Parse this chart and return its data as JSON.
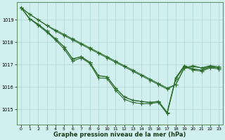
{
  "xlabel": "Graphe pression niveau de la mer (hPa)",
  "xlim": [
    -0.5,
    23.5
  ],
  "ylim": [
    1014.3,
    1019.8
  ],
  "yticks": [
    1015,
    1016,
    1017,
    1018,
    1019
  ],
  "xticks": [
    0,
    1,
    2,
    3,
    4,
    5,
    6,
    7,
    8,
    9,
    10,
    11,
    12,
    13,
    14,
    15,
    16,
    17,
    18,
    19,
    20,
    21,
    22,
    23
  ],
  "background_color": "#d0efee",
  "grid_color": "#aad4d0",
  "line_color": "#2d6e2d",
  "line1": [
    1019.55,
    1019.25,
    1019.0,
    1018.75,
    1018.55,
    1018.35,
    1018.15,
    1017.95,
    1017.75,
    1017.55,
    1017.35,
    1017.15,
    1016.95,
    1016.75,
    1016.55,
    1016.35,
    1016.15,
    1015.95,
    1016.1,
    1016.85,
    1016.95,
    1016.85,
    1016.95,
    1016.9
  ],
  "line2": [
    1019.55,
    1019.25,
    1019.0,
    1018.75,
    1018.5,
    1018.3,
    1018.1,
    1017.9,
    1017.7,
    1017.5,
    1017.3,
    1017.1,
    1016.9,
    1016.7,
    1016.5,
    1016.3,
    1016.1,
    1015.9,
    1016.1,
    1016.85,
    1016.9,
    1016.85,
    1016.9,
    1016.85
  ],
  "line3": [
    1019.55,
    1019.05,
    1018.8,
    1018.5,
    1018.15,
    1017.8,
    1017.25,
    1017.35,
    1017.1,
    1016.5,
    1016.45,
    1015.95,
    1015.55,
    1015.4,
    1015.35,
    1015.3,
    1015.35,
    1014.85,
    1016.4,
    1016.95,
    1016.8,
    1016.75,
    1016.9,
    1016.85
  ],
  "line4": [
    1019.55,
    1019.05,
    1018.8,
    1018.5,
    1018.15,
    1017.8,
    1017.25,
    1017.35,
    1017.1,
    1016.5,
    1016.45,
    1015.95,
    1015.55,
    1015.4,
    1015.35,
    1015.3,
    1015.35,
    1014.85,
    1016.4,
    1016.95,
    1016.8,
    1016.75,
    1016.9,
    1016.85
  ],
  "line5": [
    1019.55,
    1019.05,
    1018.75,
    1018.45,
    1018.1,
    1017.7,
    1017.15,
    1017.3,
    1017.05,
    1016.4,
    1016.38,
    1015.85,
    1015.45,
    1015.3,
    1015.25,
    1015.25,
    1015.3,
    1014.8,
    1016.35,
    1016.9,
    1016.75,
    1016.7,
    1016.85,
    1016.8
  ]
}
